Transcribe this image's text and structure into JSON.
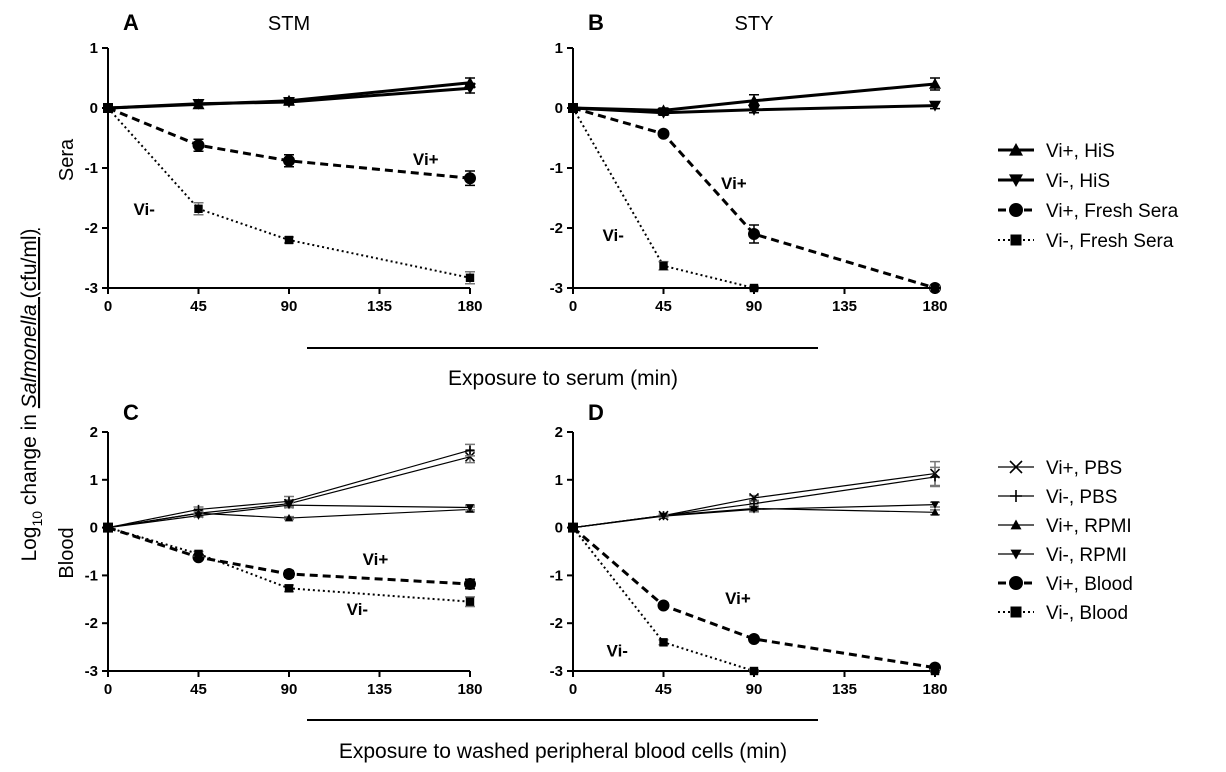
{
  "ylabel": {
    "prefix": "Log",
    "sub": "10",
    "middle": " change in ",
    "italic": "Salmonella",
    "suffix": " (cfu/ml)"
  },
  "row_labels": [
    "Sera",
    "Blood"
  ],
  "xtitles": [
    "Exposure to serum (min)",
    "Exposure to washed peripheral blood cells (min)"
  ],
  "legend_top": [
    {
      "label": "Vi+, HiS",
      "marker": "triangle-up",
      "dash": "solid",
      "width": 3
    },
    {
      "label": "Vi-, HiS",
      "marker": "triangle-down",
      "dash": "solid",
      "width": 3
    },
    {
      "label": "Vi+, Fresh Sera",
      "marker": "circle",
      "dash": "dashed",
      "width": 3
    },
    {
      "label": "Vi-, Fresh Sera",
      "marker": "square",
      "dash": "dotted",
      "width": 2
    }
  ],
  "legend_bottom": [
    {
      "label": "Vi+, PBS",
      "marker": "x",
      "dash": "solid",
      "width": 1.2
    },
    {
      "label": "Vi-, PBS",
      "marker": "plus",
      "dash": "solid",
      "width": 1.2
    },
    {
      "label": "Vi+, RPMI",
      "marker": "triangle-up",
      "dash": "solid",
      "width": 1.2
    },
    {
      "label": "Vi-, RPMI",
      "marker": "triangle-down",
      "dash": "solid",
      "width": 1.2
    },
    {
      "label": "Vi+, Blood",
      "marker": "circle",
      "dash": "dashed",
      "width": 3
    },
    {
      "label": "Vi-, Blood",
      "marker": "square",
      "dash": "dotted",
      "width": 2
    }
  ],
  "chart_data": [
    {
      "panel": "A",
      "title": "STM",
      "type": "line",
      "x": [
        0,
        45,
        90,
        135,
        180
      ],
      "xlim": [
        0,
        180
      ],
      "ylim": [
        -3,
        1
      ],
      "yticks": [
        1,
        0,
        -1,
        -2,
        -3
      ],
      "series": [
        {
          "name": "Vi+, HiS",
          "x": [
            0,
            45,
            90,
            180
          ],
          "y": [
            0,
            0.06,
            0.12,
            0.42
          ],
          "err": [
            0,
            0.06,
            0.05,
            0.08
          ]
        },
        {
          "name": "Vi-, HiS",
          "x": [
            0,
            45,
            90,
            180
          ],
          "y": [
            0,
            0.07,
            0.1,
            0.33
          ],
          "err": [
            0,
            0.06,
            0.05,
            0.08
          ]
        },
        {
          "name": "Vi+, Fresh Sera",
          "x": [
            0,
            45,
            90,
            180
          ],
          "y": [
            0,
            -0.62,
            -0.88,
            -1.17
          ],
          "err": [
            0,
            0.1,
            0.1,
            0.12
          ]
        },
        {
          "name": "Vi-, Fresh Sera",
          "x": [
            0,
            45,
            90,
            180
          ],
          "y": [
            0,
            -1.68,
            -2.2,
            -2.83
          ],
          "err": [
            0,
            0.1,
            0.05,
            0.1
          ]
        }
      ],
      "annotations": [
        {
          "text": "Vi+",
          "x": 158,
          "y": -0.95
        },
        {
          "text": "Vi-",
          "x": 18,
          "y": -1.78
        }
      ]
    },
    {
      "panel": "B",
      "title": "STY",
      "type": "line",
      "x": [
        0,
        45,
        90,
        135,
        180
      ],
      "xlim": [
        0,
        180
      ],
      "ylim": [
        -3,
        1
      ],
      "yticks": [
        1,
        0,
        -1,
        -2,
        -3
      ],
      "series": [
        {
          "name": "Vi+, HiS",
          "x": [
            0,
            45,
            90,
            180
          ],
          "y": [
            0,
            -0.04,
            0.12,
            0.4
          ],
          "err": [
            0,
            0.04,
            0.1,
            0.1
          ]
        },
        {
          "name": "Vi-, HiS",
          "x": [
            0,
            45,
            90,
            180
          ],
          "y": [
            0,
            -0.08,
            -0.03,
            0.04
          ],
          "err": [
            0,
            0.04,
            0.05,
            0.05
          ]
        },
        {
          "name": "Vi+, Fresh Sera",
          "x": [
            0,
            45,
            90,
            180
          ],
          "y": [
            0,
            -0.43,
            -2.1,
            -3.0
          ],
          "err": [
            0,
            0.05,
            0.15,
            0.03
          ]
        },
        {
          "name": "Vi-, Fresh Sera",
          "x": [
            0,
            45,
            90,
            180
          ],
          "y": [
            0,
            -2.63,
            -3.0,
            -3.0
          ],
          "err": [
            0,
            0.07,
            0.03,
            0.03
          ]
        }
      ],
      "annotations": [
        {
          "text": "Vi+",
          "x": 80,
          "y": -1.35
        },
        {
          "text": "Vi-",
          "x": 20,
          "y": -2.22
        }
      ]
    },
    {
      "panel": "C",
      "title": "",
      "type": "line",
      "x": [
        0,
        45,
        90,
        135,
        180
      ],
      "xlim": [
        0,
        180
      ],
      "ylim": [
        -3,
        2
      ],
      "yticks": [
        2,
        1,
        0,
        -1,
        -2,
        -3
      ],
      "series": [
        {
          "name": "Vi+, PBS",
          "x": [
            0,
            45,
            90,
            180
          ],
          "y": [
            0,
            0.3,
            0.5,
            1.48
          ],
          "err": [
            0,
            0.05,
            0.08,
            0.12
          ]
        },
        {
          "name": "Vi-, PBS",
          "x": [
            0,
            45,
            90,
            180
          ],
          "y": [
            0,
            0.38,
            0.55,
            1.62
          ],
          "err": [
            0,
            0.05,
            0.1,
            0.12
          ]
        },
        {
          "name": "Vi+, RPMI",
          "x": [
            0,
            45,
            90,
            180
          ],
          "y": [
            0,
            0.3,
            0.2,
            0.38
          ],
          "err": [
            0,
            0.03,
            0.03,
            0.05
          ]
        },
        {
          "name": "Vi-, RPMI",
          "x": [
            0,
            45,
            90,
            180
          ],
          "y": [
            0,
            0.25,
            0.47,
            0.42
          ],
          "err": [
            0,
            0.03,
            0.05,
            0.05
          ]
        },
        {
          "name": "Vi+, Blood",
          "x": [
            0,
            45,
            90,
            180
          ],
          "y": [
            0,
            -0.62,
            -0.97,
            -1.18
          ],
          "err": [
            0,
            0.05,
            0.07,
            0.1
          ]
        },
        {
          "name": "Vi-, Blood",
          "x": [
            0,
            45,
            90,
            180
          ],
          "y": [
            0,
            -0.55,
            -1.27,
            -1.55
          ],
          "err": [
            0,
            0.05,
            0.07,
            0.1
          ]
        }
      ],
      "annotations": [
        {
          "text": "Vi+",
          "x": 133,
          "y": -0.78
        },
        {
          "text": "Vi-",
          "x": 124,
          "y": -1.83
        }
      ]
    },
    {
      "panel": "D",
      "title": "",
      "type": "line",
      "x": [
        0,
        45,
        90,
        135,
        180
      ],
      "xlim": [
        0,
        180
      ],
      "ylim": [
        -3,
        2
      ],
      "yticks": [
        2,
        1,
        0,
        -1,
        -2,
        -3
      ],
      "series": [
        {
          "name": "Vi+, PBS",
          "x": [
            0,
            45,
            90,
            180
          ],
          "y": [
            0,
            0.25,
            0.62,
            1.13
          ],
          "err": [
            0,
            0.03,
            0.05,
            0.25
          ]
        },
        {
          "name": "Vi-, PBS",
          "x": [
            0,
            45,
            90,
            180
          ],
          "y": [
            0,
            0.25,
            0.5,
            1.06
          ],
          "err": [
            0,
            0.03,
            0.05,
            0.2
          ]
        },
        {
          "name": "Vi+, RPMI",
          "x": [
            0,
            45,
            90,
            180
          ],
          "y": [
            0,
            0.25,
            0.4,
            0.32
          ],
          "err": [
            0,
            0.03,
            0.05,
            0.05
          ]
        },
        {
          "name": "Vi-, RPMI",
          "x": [
            0,
            45,
            90,
            180
          ],
          "y": [
            0,
            0.24,
            0.38,
            0.48
          ],
          "err": [
            0,
            0.03,
            0.05,
            0.05
          ]
        },
        {
          "name": "Vi+, Blood",
          "x": [
            0,
            45,
            90,
            180
          ],
          "y": [
            0,
            -1.63,
            -2.33,
            -2.93
          ],
          "err": [
            0,
            0.04,
            0.05,
            0.05
          ]
        },
        {
          "name": "Vi-, Blood",
          "x": [
            0,
            45,
            90,
            180
          ],
          "y": [
            0,
            -2.4,
            -3.0,
            -3.0
          ],
          "err": [
            0,
            0.05,
            0.03,
            0.03
          ]
        }
      ],
      "annotations": [
        {
          "text": "Vi+",
          "x": 82,
          "y": -1.6
        },
        {
          "text": "Vi-",
          "x": 22,
          "y": -2.7
        }
      ]
    }
  ]
}
